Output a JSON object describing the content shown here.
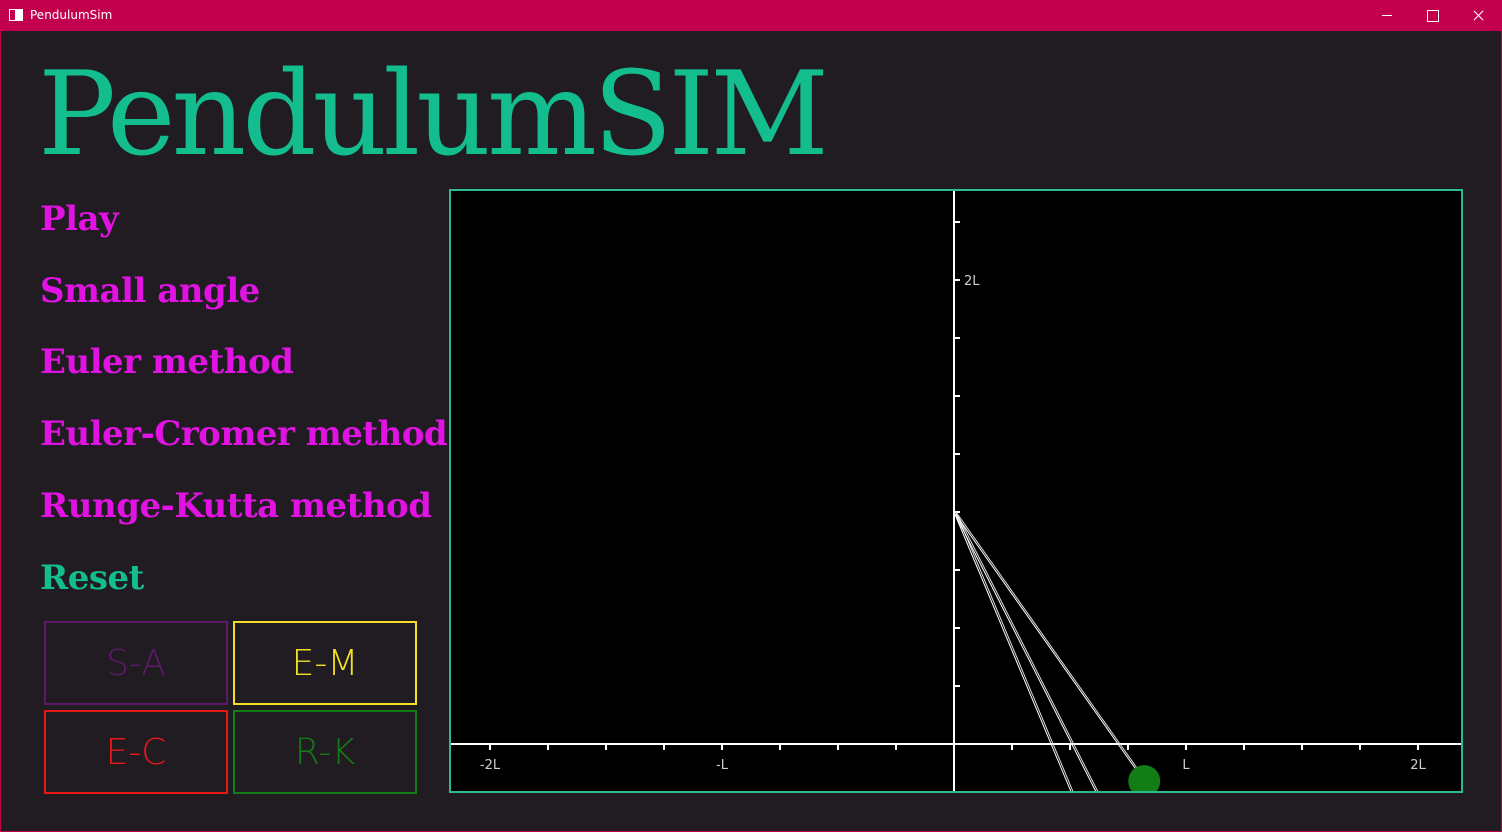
{
  "window": {
    "title": "PendulumSim"
  },
  "header": {
    "title": "PendulumSIM"
  },
  "menu": {
    "items": [
      {
        "id": "play",
        "label": "Play"
      },
      {
        "id": "small-angle",
        "label": "Small angle"
      },
      {
        "id": "euler",
        "label": "Euler method"
      },
      {
        "id": "euler-cromer",
        "label": "Euler-Cromer method"
      },
      {
        "id": "runge-kutta",
        "label": "Runge-Kutta method"
      },
      {
        "id": "reset",
        "label": "Reset"
      }
    ]
  },
  "toggles": [
    {
      "id": "sa",
      "label": "S-A",
      "color": "#5e1a6a"
    },
    {
      "id": "em",
      "label": "E-M",
      "color": "#f3e024"
    },
    {
      "id": "ec",
      "label": "E-C",
      "color": "#e81818"
    },
    {
      "id": "rk",
      "label": "R-K",
      "color": "#127d15"
    }
  ],
  "simulation": {
    "axis_color": "#ffffff",
    "border_color": "#2fb894",
    "x_range_L": [
      -2.2,
      2.2
    ],
    "x_tick_step_L": 0.25,
    "x_labels": [
      {
        "value": -2,
        "text": "-2L"
      },
      {
        "value": -1,
        "text": "-L"
      },
      {
        "value": 1,
        "text": "L"
      },
      {
        "value": 2,
        "text": "2L"
      }
    ],
    "y_labels": [
      {
        "value": 2,
        "text": "2L"
      }
    ],
    "pivot_L": [
      0,
      1
    ],
    "pendulums": [
      {
        "name": "S-A",
        "color": "#5e1a6a",
        "bob_L": [
          0.59,
          -0.41
        ]
      },
      {
        "name": "E-M",
        "color": "#f3e024",
        "bob_L": [
          0.68,
          -0.34
        ]
      },
      {
        "name": "R-K",
        "color": "#127d15",
        "bob_L": [
          0.82,
          -0.16
        ]
      }
    ]
  }
}
